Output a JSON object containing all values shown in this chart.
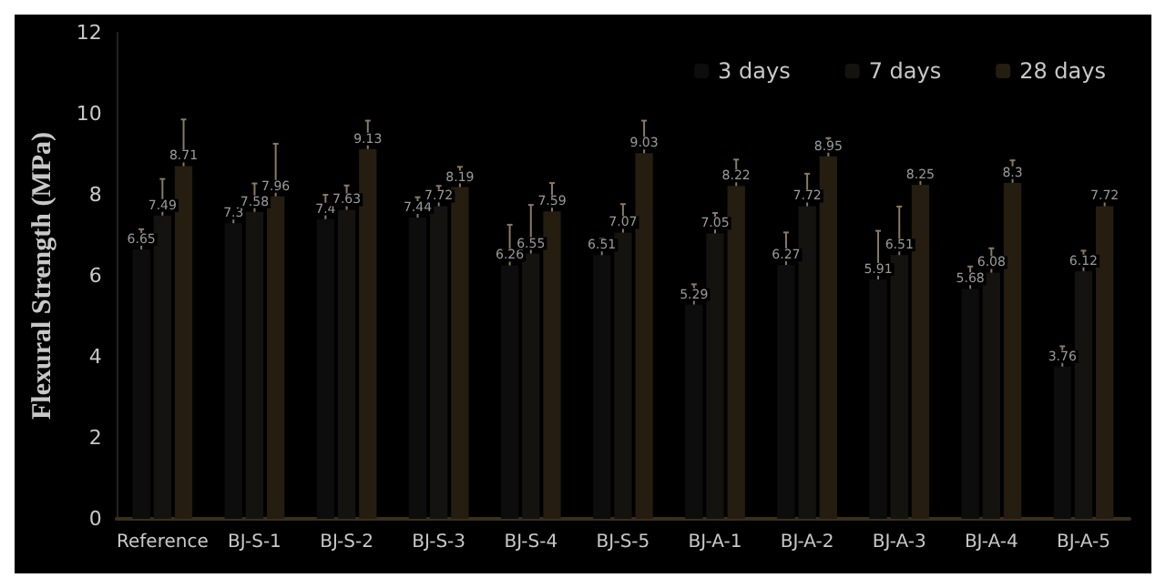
{
  "chart_data": {
    "type": "bar",
    "ylabel": "Flexural Strength (MPa)",
    "categories": [
      "Reference",
      "BJ-S-1",
      "BJ-S-2",
      "BJ-S-3",
      "BJ-S-4",
      "BJ-S-5",
      "BJ-A-1",
      "BJ-A-2",
      "BJ-A-3",
      "BJ-A-4",
      "BJ-A-5"
    ],
    "series": [
      {
        "name": "3 days",
        "color": "#0d0d0d",
        "values": [
          6.65,
          7.3,
          7.4,
          7.44,
          6.26,
          6.51,
          5.29,
          6.27,
          5.91,
          5.68,
          3.76
        ],
        "errors": [
          0.5,
          0.35,
          0.6,
          0.5,
          1.0,
          0.4,
          0.5,
          0.8,
          1.2,
          0.55,
          0.5
        ]
      },
      {
        "name": "7 days",
        "color": "#15130f",
        "values": [
          7.49,
          7.58,
          7.63,
          7.72,
          6.55,
          7.07,
          7.05,
          7.72,
          6.51,
          6.08,
          6.12
        ],
        "errors": [
          0.9,
          0.7,
          0.6,
          0.5,
          1.2,
          0.7,
          0.5,
          0.8,
          1.2,
          0.6,
          0.5
        ]
      },
      {
        "name": "28 days",
        "color": "#241d10",
        "values": [
          8.71,
          7.96,
          9.13,
          8.19,
          7.59,
          9.03,
          8.22,
          8.95,
          8.25,
          8.3,
          7.72
        ],
        "errors": [
          1.15,
          1.3,
          0.7,
          0.5,
          0.7,
          0.8,
          0.65,
          0.45,
          0.25,
          0.55,
          0.35
        ]
      }
    ],
    "ylim": [
      0,
      12
    ],
    "yticks": [
      0,
      2,
      4,
      6,
      8,
      10,
      12
    ],
    "grid": false,
    "legend": "top right",
    "data_labels": true
  }
}
